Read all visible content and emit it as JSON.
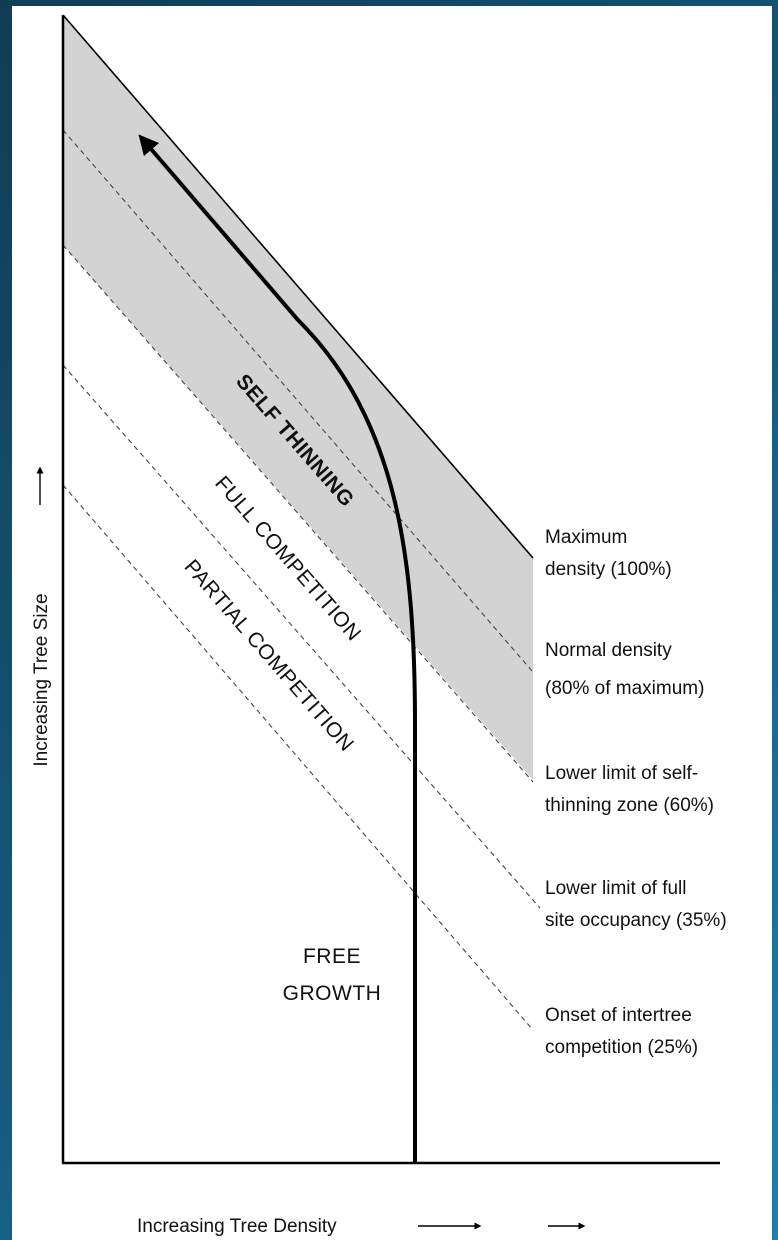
{
  "axes": {
    "y_label": "Increasing Tree Size",
    "x_label": "Increasing Tree Density"
  },
  "zones": [
    "SELF THINNING",
    "FULL COMPETITION",
    "PARTIAL COMPETITION",
    [
      "FREE",
      "GROWTH"
    ]
  ],
  "lines": [
    [
      "Maximum",
      "density (100%)"
    ],
    [
      "Normal density",
      "(80% of maximum)"
    ],
    [
      "Lower limit of self-",
      "thinning zone (60%)"
    ],
    [
      "Lower limit of full",
      "site occupancy (35%)"
    ],
    [
      "Onset of intertree",
      "competition (25%)"
    ]
  ]
}
